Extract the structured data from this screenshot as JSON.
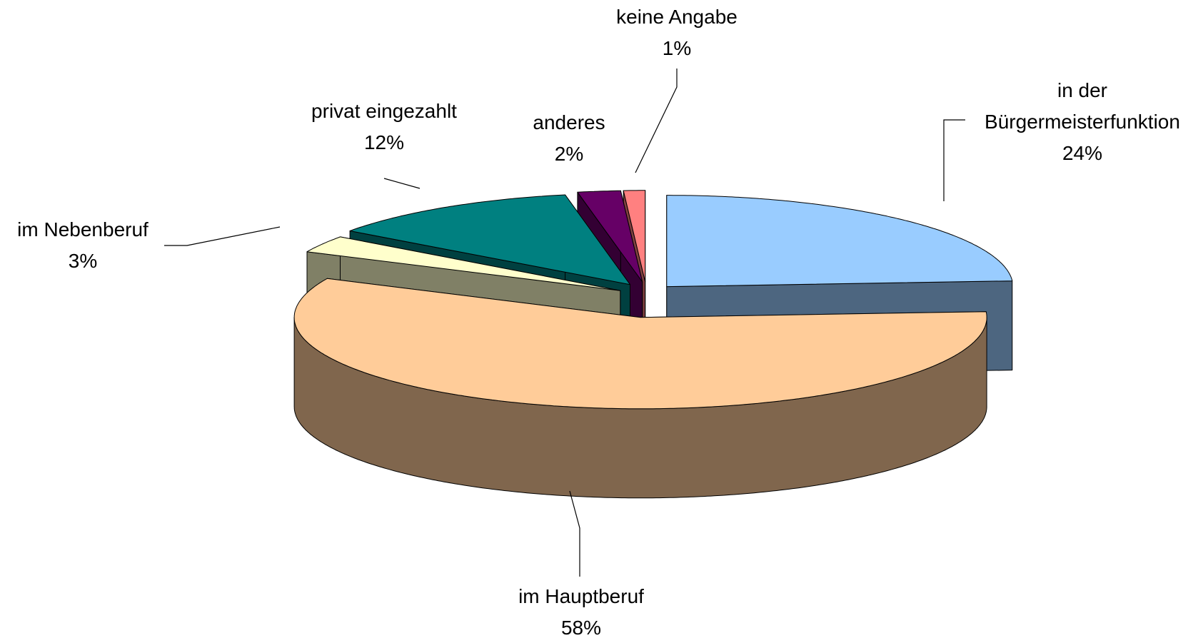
{
  "chart_data": {
    "type": "pie3d",
    "categories": [
      "in der Bürgermeisterfunktion",
      "im Hauptberuf",
      "im Nebenberuf",
      "privat eingezahlt",
      "anderes",
      "keine Angabe"
    ],
    "values": [
      24,
      58,
      3,
      12,
      2,
      1
    ],
    "value_labels": [
      "24%",
      "58%",
      "3%",
      "12%",
      "2%",
      "1%"
    ],
    "colors": [
      "#99ccff",
      "#ffcc99",
      "#ffffcc",
      "#008080",
      "#660066",
      "#ff8080"
    ]
  }
}
